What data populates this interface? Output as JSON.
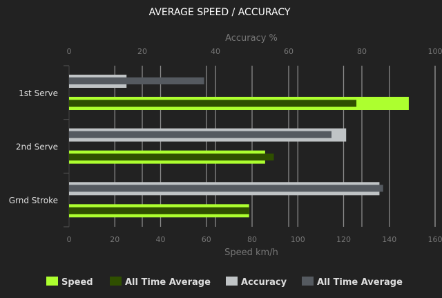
{
  "chart_data": {
    "type": "bar",
    "orientation": "horizontal",
    "title": "AVERAGE SPEED / ACCURACY",
    "categories": [
      "1st Serve",
      "2nd Serve",
      "Grnd Stroke"
    ],
    "top_axis": {
      "label": "Accuracy %",
      "range": [
        0,
        100
      ],
      "ticks": [
        0,
        20,
        40,
        60,
        80,
        100
      ]
    },
    "bottom_axis": {
      "label": "Speed km/h",
      "range": [
        0,
        160
      ],
      "ticks": [
        0,
        20,
        40,
        60,
        80,
        100,
        120,
        140,
        160
      ]
    },
    "grid": true,
    "legend_position": "bottom",
    "series": [
      {
        "name": "Speed",
        "axis": "speed",
        "color": "#adff2f",
        "values": [
          148.5,
          85.7,
          78.7
        ]
      },
      {
        "name": "All Time Average",
        "axis": "speed",
        "color": "#2f4f00",
        "values": [
          125.6,
          89.5,
          78.7
        ]
      },
      {
        "name": "Accuracy",
        "axis": "accuracy",
        "color": "#c0c4c6",
        "values": [
          15.7,
          75.7,
          84.8
        ]
      },
      {
        "name": "All Time Average",
        "axis": "accuracy",
        "color": "#555a60",
        "values": [
          36.9,
          71.7,
          85.8
        ]
      }
    ]
  }
}
